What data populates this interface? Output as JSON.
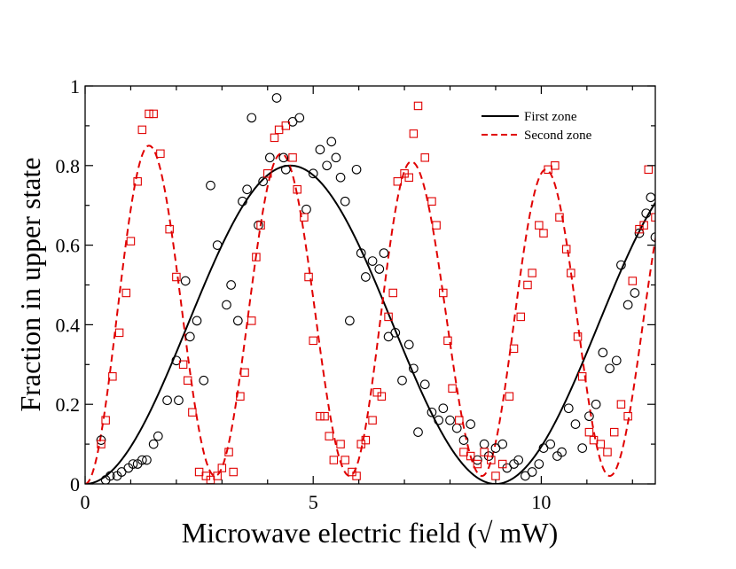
{
  "chart_data": {
    "type": "scatter",
    "xlabel": "Microwave electric field (√ mW)",
    "ylabel": "Fraction in upper state",
    "xlim": [
      0,
      12.5
    ],
    "ylim": [
      0,
      1
    ],
    "x_ticks": [
      0,
      5,
      10
    ],
    "y_ticks": [
      0,
      0.2,
      0.4,
      0.6,
      0.8,
      1
    ],
    "x_tick_labels": [
      "0",
      "5",
      "10"
    ],
    "y_tick_labels": [
      "0",
      "0.2",
      "0.4",
      "0.6",
      "0.8",
      "1"
    ],
    "grid": false,
    "legend_position": "top-right",
    "colors": {
      "first": "#000000",
      "second": "#e00000"
    },
    "fit_curves": [
      {
        "name": "First zone",
        "style": "solid",
        "color": "#000000",
        "amplitude": 0.8,
        "period": 9.0,
        "phase": 0
      },
      {
        "name": "Second zone",
        "style": "dashed",
        "color": "#e00000",
        "peaks": [
          {
            "x": 1.4,
            "y": 0.85
          },
          {
            "x": 4.3,
            "y": 0.83
          },
          {
            "x": 7.15,
            "y": 0.81
          },
          {
            "x": 10.1,
            "y": 0.79
          }
        ],
        "troughs": [
          {
            "x": 2.85,
            "y": 0.02
          },
          {
            "x": 5.8,
            "y": 0.02
          },
          {
            "x": 8.7,
            "y": 0.02
          },
          {
            "x": 11.5,
            "y": 0.02
          }
        ]
      }
    ],
    "series": [
      {
        "name": "First zone data",
        "marker": "circle",
        "color": "#000000",
        "points": [
          [
            0.35,
            0.11
          ],
          [
            0.45,
            0.01
          ],
          [
            0.55,
            0.02
          ],
          [
            0.7,
            0.02
          ],
          [
            0.8,
            0.03
          ],
          [
            0.95,
            0.04
          ],
          [
            1.05,
            0.05
          ],
          [
            1.15,
            0.05
          ],
          [
            1.25,
            0.06
          ],
          [
            1.35,
            0.06
          ],
          [
            1.5,
            0.1
          ],
          [
            1.6,
            0.12
          ],
          [
            1.8,
            0.21
          ],
          [
            2.0,
            0.31
          ],
          [
            2.05,
            0.21
          ],
          [
            2.2,
            0.51
          ],
          [
            2.3,
            0.37
          ],
          [
            2.45,
            0.41
          ],
          [
            2.6,
            0.26
          ],
          [
            2.75,
            0.75
          ],
          [
            2.9,
            0.6
          ],
          [
            3.1,
            0.45
          ],
          [
            3.2,
            0.5
          ],
          [
            3.35,
            0.41
          ],
          [
            3.45,
            0.71
          ],
          [
            3.55,
            0.74
          ],
          [
            3.65,
            0.92
          ],
          [
            3.8,
            0.65
          ],
          [
            3.9,
            0.76
          ],
          [
            4.05,
            0.82
          ],
          [
            4.2,
            0.97
          ],
          [
            4.35,
            0.82
          ],
          [
            4.4,
            0.79
          ],
          [
            4.55,
            0.91
          ],
          [
            4.7,
            0.92
          ],
          [
            4.85,
            0.69
          ],
          [
            5.0,
            0.78
          ],
          [
            5.15,
            0.84
          ],
          [
            5.3,
            0.8
          ],
          [
            5.4,
            0.86
          ],
          [
            5.5,
            0.82
          ],
          [
            5.6,
            0.77
          ],
          [
            5.7,
            0.71
          ],
          [
            5.8,
            0.41
          ],
          [
            5.95,
            0.79
          ],
          [
            6.05,
            0.58
          ],
          [
            6.15,
            0.52
          ],
          [
            6.3,
            0.56
          ],
          [
            6.45,
            0.54
          ],
          [
            6.55,
            0.58
          ],
          [
            6.65,
            0.37
          ],
          [
            6.8,
            0.38
          ],
          [
            6.95,
            0.26
          ],
          [
            7.1,
            0.35
          ],
          [
            7.2,
            0.29
          ],
          [
            7.3,
            0.13
          ],
          [
            7.45,
            0.25
          ],
          [
            7.6,
            0.18
          ],
          [
            7.75,
            0.16
          ],
          [
            7.85,
            0.19
          ],
          [
            8.0,
            0.16
          ],
          [
            8.15,
            0.14
          ],
          [
            8.3,
            0.11
          ],
          [
            8.45,
            0.15
          ],
          [
            8.6,
            0.06
          ],
          [
            8.75,
            0.1
          ],
          [
            8.85,
            0.07
          ],
          [
            9.0,
            0.09
          ],
          [
            9.15,
            0.1
          ],
          [
            9.25,
            0.04
          ],
          [
            9.4,
            0.05
          ],
          [
            9.5,
            0.06
          ],
          [
            9.65,
            0.02
          ],
          [
            9.8,
            0.03
          ],
          [
            9.95,
            0.05
          ],
          [
            10.05,
            0.09
          ],
          [
            10.2,
            0.1
          ],
          [
            10.35,
            0.07
          ],
          [
            10.45,
            0.08
          ],
          [
            10.6,
            0.19
          ],
          [
            10.75,
            0.15
          ],
          [
            10.9,
            0.09
          ],
          [
            11.05,
            0.17
          ],
          [
            11.2,
            0.2
          ],
          [
            11.35,
            0.33
          ],
          [
            11.5,
            0.29
          ],
          [
            11.65,
            0.31
          ],
          [
            11.75,
            0.55
          ],
          [
            11.9,
            0.45
          ],
          [
            12.05,
            0.48
          ],
          [
            12.15,
            0.63
          ],
          [
            12.3,
            0.68
          ],
          [
            12.4,
            0.72
          ],
          [
            12.5,
            0.62
          ],
          [
            12.6,
            0.74
          ]
        ]
      },
      {
        "name": "Second zone data",
        "marker": "square",
        "color": "#e00000",
        "points": [
          [
            0.35,
            0.1
          ],
          [
            0.45,
            0.16
          ],
          [
            0.6,
            0.27
          ],
          [
            0.75,
            0.38
          ],
          [
            0.9,
            0.48
          ],
          [
            1.0,
            0.61
          ],
          [
            1.15,
            0.76
          ],
          [
            1.25,
            0.89
          ],
          [
            1.4,
            0.93
          ],
          [
            1.5,
            0.93
          ],
          [
            1.65,
            0.83
          ],
          [
            1.85,
            0.64
          ],
          [
            2.0,
            0.52
          ],
          [
            2.15,
            0.3
          ],
          [
            2.25,
            0.26
          ],
          [
            2.35,
            0.18
          ],
          [
            2.5,
            0.03
          ],
          [
            2.65,
            0.02
          ],
          [
            2.75,
            0.01
          ],
          [
            2.9,
            0.02
          ],
          [
            3.0,
            0.04
          ],
          [
            3.15,
            0.08
          ],
          [
            3.25,
            0.03
          ],
          [
            3.4,
            0.22
          ],
          [
            3.5,
            0.28
          ],
          [
            3.65,
            0.41
          ],
          [
            3.75,
            0.57
          ],
          [
            3.85,
            0.65
          ],
          [
            4.0,
            0.78
          ],
          [
            4.15,
            0.87
          ],
          [
            4.25,
            0.89
          ],
          [
            4.4,
            0.9
          ],
          [
            4.55,
            0.82
          ],
          [
            4.65,
            0.74
          ],
          [
            4.8,
            0.67
          ],
          [
            4.9,
            0.52
          ],
          [
            5.0,
            0.36
          ],
          [
            5.15,
            0.17
          ],
          [
            5.25,
            0.17
          ],
          [
            5.35,
            0.12
          ],
          [
            5.45,
            0.06
          ],
          [
            5.6,
            0.1
          ],
          [
            5.7,
            0.06
          ],
          [
            5.85,
            0.03
          ],
          [
            5.95,
            0.02
          ],
          [
            6.05,
            0.1
          ],
          [
            6.15,
            0.11
          ],
          [
            6.3,
            0.16
          ],
          [
            6.4,
            0.23
          ],
          [
            6.5,
            0.22
          ],
          [
            6.65,
            0.42
          ],
          [
            6.75,
            0.48
          ],
          [
            6.85,
            0.76
          ],
          [
            7.0,
            0.78
          ],
          [
            7.1,
            0.77
          ],
          [
            7.2,
            0.88
          ],
          [
            7.3,
            0.95
          ],
          [
            7.45,
            0.82
          ],
          [
            7.6,
            0.71
          ],
          [
            7.7,
            0.65
          ],
          [
            7.85,
            0.48
          ],
          [
            7.95,
            0.36
          ],
          [
            8.05,
            0.24
          ],
          [
            8.2,
            0.16
          ],
          [
            8.3,
            0.08
          ],
          [
            8.45,
            0.07
          ],
          [
            8.6,
            0.05
          ],
          [
            8.75,
            0.08
          ],
          [
            8.9,
            0.06
          ],
          [
            9.0,
            0.02
          ],
          [
            9.15,
            0.05
          ],
          [
            9.3,
            0.22
          ],
          [
            9.4,
            0.34
          ],
          [
            9.55,
            0.42
          ],
          [
            9.7,
            0.5
          ],
          [
            9.8,
            0.53
          ],
          [
            9.95,
            0.65
          ],
          [
            10.05,
            0.63
          ],
          [
            10.15,
            0.79
          ],
          [
            10.3,
            0.8
          ],
          [
            10.4,
            0.67
          ],
          [
            10.55,
            0.59
          ],
          [
            10.65,
            0.53
          ],
          [
            10.8,
            0.37
          ],
          [
            10.9,
            0.27
          ],
          [
            11.05,
            0.13
          ],
          [
            11.15,
            0.11
          ],
          [
            11.3,
            0.1
          ],
          [
            11.45,
            0.08
          ],
          [
            11.6,
            0.13
          ],
          [
            11.75,
            0.2
          ],
          [
            11.9,
            0.17
          ],
          [
            12.0,
            0.51
          ],
          [
            12.15,
            0.64
          ],
          [
            12.25,
            0.65
          ],
          [
            12.35,
            0.79
          ],
          [
            12.5,
            0.67
          ]
        ]
      }
    ],
    "legend": [
      "First zone",
      "Second zone"
    ]
  }
}
